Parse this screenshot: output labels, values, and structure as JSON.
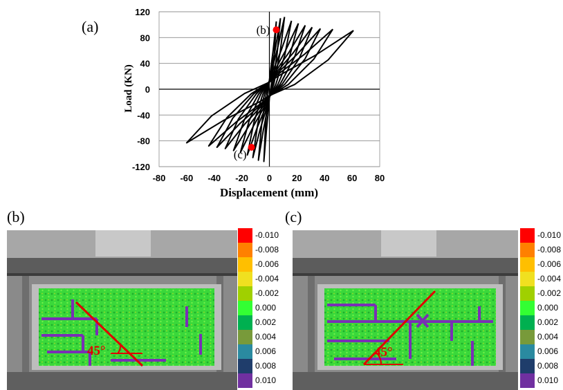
{
  "panel_labels": {
    "a": "(a)",
    "b": "(b)",
    "c": "(c)"
  },
  "chart_data": {
    "type": "line",
    "title": "",
    "xlabel": "Displacement (mm)",
    "ylabel": "Load (KN)",
    "xlim": [
      -80,
      80
    ],
    "ylim": [
      -120,
      120
    ],
    "x_ticks": [
      -80,
      -60,
      -40,
      -20,
      0,
      20,
      40,
      60,
      80
    ],
    "y_ticks": [
      -120,
      -80,
      -40,
      0,
      40,
      80,
      120
    ],
    "x_tick_labels": [
      "-80",
      "-60",
      "-40",
      "-20",
      "0",
      "20",
      "40",
      "60",
      "80"
    ],
    "y_tick_labels": [
      "-120",
      "-80",
      "-40",
      "0",
      "40",
      "80",
      "120"
    ],
    "grid": "horizontal",
    "series": [
      {
        "cycles": [
          {
            "dmax": 5,
            "dmin": -4,
            "pmax": 105,
            "pmin": -112
          },
          {
            "dmax": 8,
            "dmin": -8,
            "pmax": 110,
            "pmin": -110
          },
          {
            "dmax": 11,
            "dmin": -12,
            "pmax": 112,
            "pmin": -106
          },
          {
            "dmax": 16,
            "dmin": -16,
            "pmax": 106,
            "pmin": -102
          },
          {
            "dmax": 21,
            "dmin": -21,
            "pmax": 102,
            "pmin": -98
          },
          {
            "dmax": 26,
            "dmin": -26,
            "pmax": 99,
            "pmin": -95
          },
          {
            "dmax": 31,
            "dmin": -32,
            "pmax": 96,
            "pmin": -92
          },
          {
            "dmax": 37,
            "dmin": -38,
            "pmax": 94,
            "pmin": -90
          },
          {
            "dmax": 46,
            "dmin": -44,
            "pmax": 93,
            "pmin": -88
          },
          {
            "dmax": 61,
            "dmin": -60,
            "pmax": 91,
            "pmin": -83
          }
        ]
      }
    ],
    "markers": [
      {
        "label": "(b)",
        "x": 5,
        "y": 92,
        "color": "#ff0000"
      },
      {
        "label": "(c)",
        "x": -13,
        "y": -90,
        "color": "#ff0000"
      }
    ]
  },
  "strain_legend": {
    "labels": [
      "-0.010",
      "-0.008",
      "-0.006",
      "-0.004",
      "-0.002",
      "0.000",
      "0.002",
      "0.004",
      "0.006",
      "0.008",
      "0.010"
    ],
    "colors": [
      "#ff0000",
      "#ff8000",
      "#ffbf00",
      "#f0e020",
      "#a0d000",
      "#33ff33",
      "#00b050",
      "#789a3a",
      "#2a8aa0",
      "#1f3d6b",
      "#7030a0"
    ]
  },
  "photo_b": {
    "angle_label": "45°"
  },
  "photo_c": {
    "angle_label": "45°"
  }
}
